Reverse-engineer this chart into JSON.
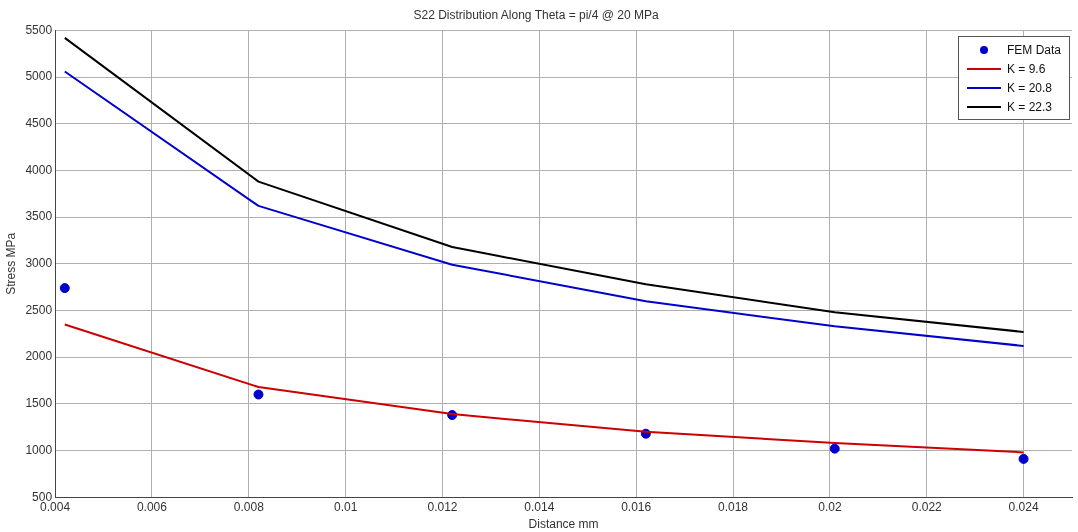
{
  "chart_data": {
    "type": "line",
    "title": "S22 Distribution Along Theta = pi/4 @ 20 MPa",
    "xlabel": "Distance mm",
    "ylabel": "Stress MPa",
    "x": [
      0.0042,
      0.0082,
      0.0122,
      0.0162,
      0.0201,
      0.024
    ],
    "series": [
      {
        "name": "FEM Data",
        "type": "scatter",
        "color": "#0000cc",
        "marker": "circle",
        "values": [
          2740,
          1600,
          1380,
          1180,
          1020,
          910
        ]
      },
      {
        "name": "K = 9.6",
        "color": "#cc0000",
        "values": [
          2350,
          1680,
          1390,
          1200,
          1080,
          980
        ]
      },
      {
        "name": "K = 20.8",
        "color": "#0000cc",
        "values": [
          5060,
          3620,
          2990,
          2600,
          2330,
          2120
        ]
      },
      {
        "name": "K = 22.3",
        "color": "#000000",
        "values": [
          5420,
          3880,
          3180,
          2780,
          2480,
          2270
        ]
      }
    ],
    "xlim": [
      0.004,
      0.025
    ],
    "xticks": [
      0.004,
      0.006,
      0.008,
      0.01,
      0.012,
      0.014,
      0.016,
      0.018,
      0.02,
      0.022,
      0.024
    ],
    "ylim": [
      500,
      5500
    ],
    "yticks": [
      500,
      1000,
      1500,
      2000,
      2500,
      3000,
      3500,
      4000,
      4500,
      5000,
      5500
    ],
    "grid": true,
    "legend": "top right"
  }
}
